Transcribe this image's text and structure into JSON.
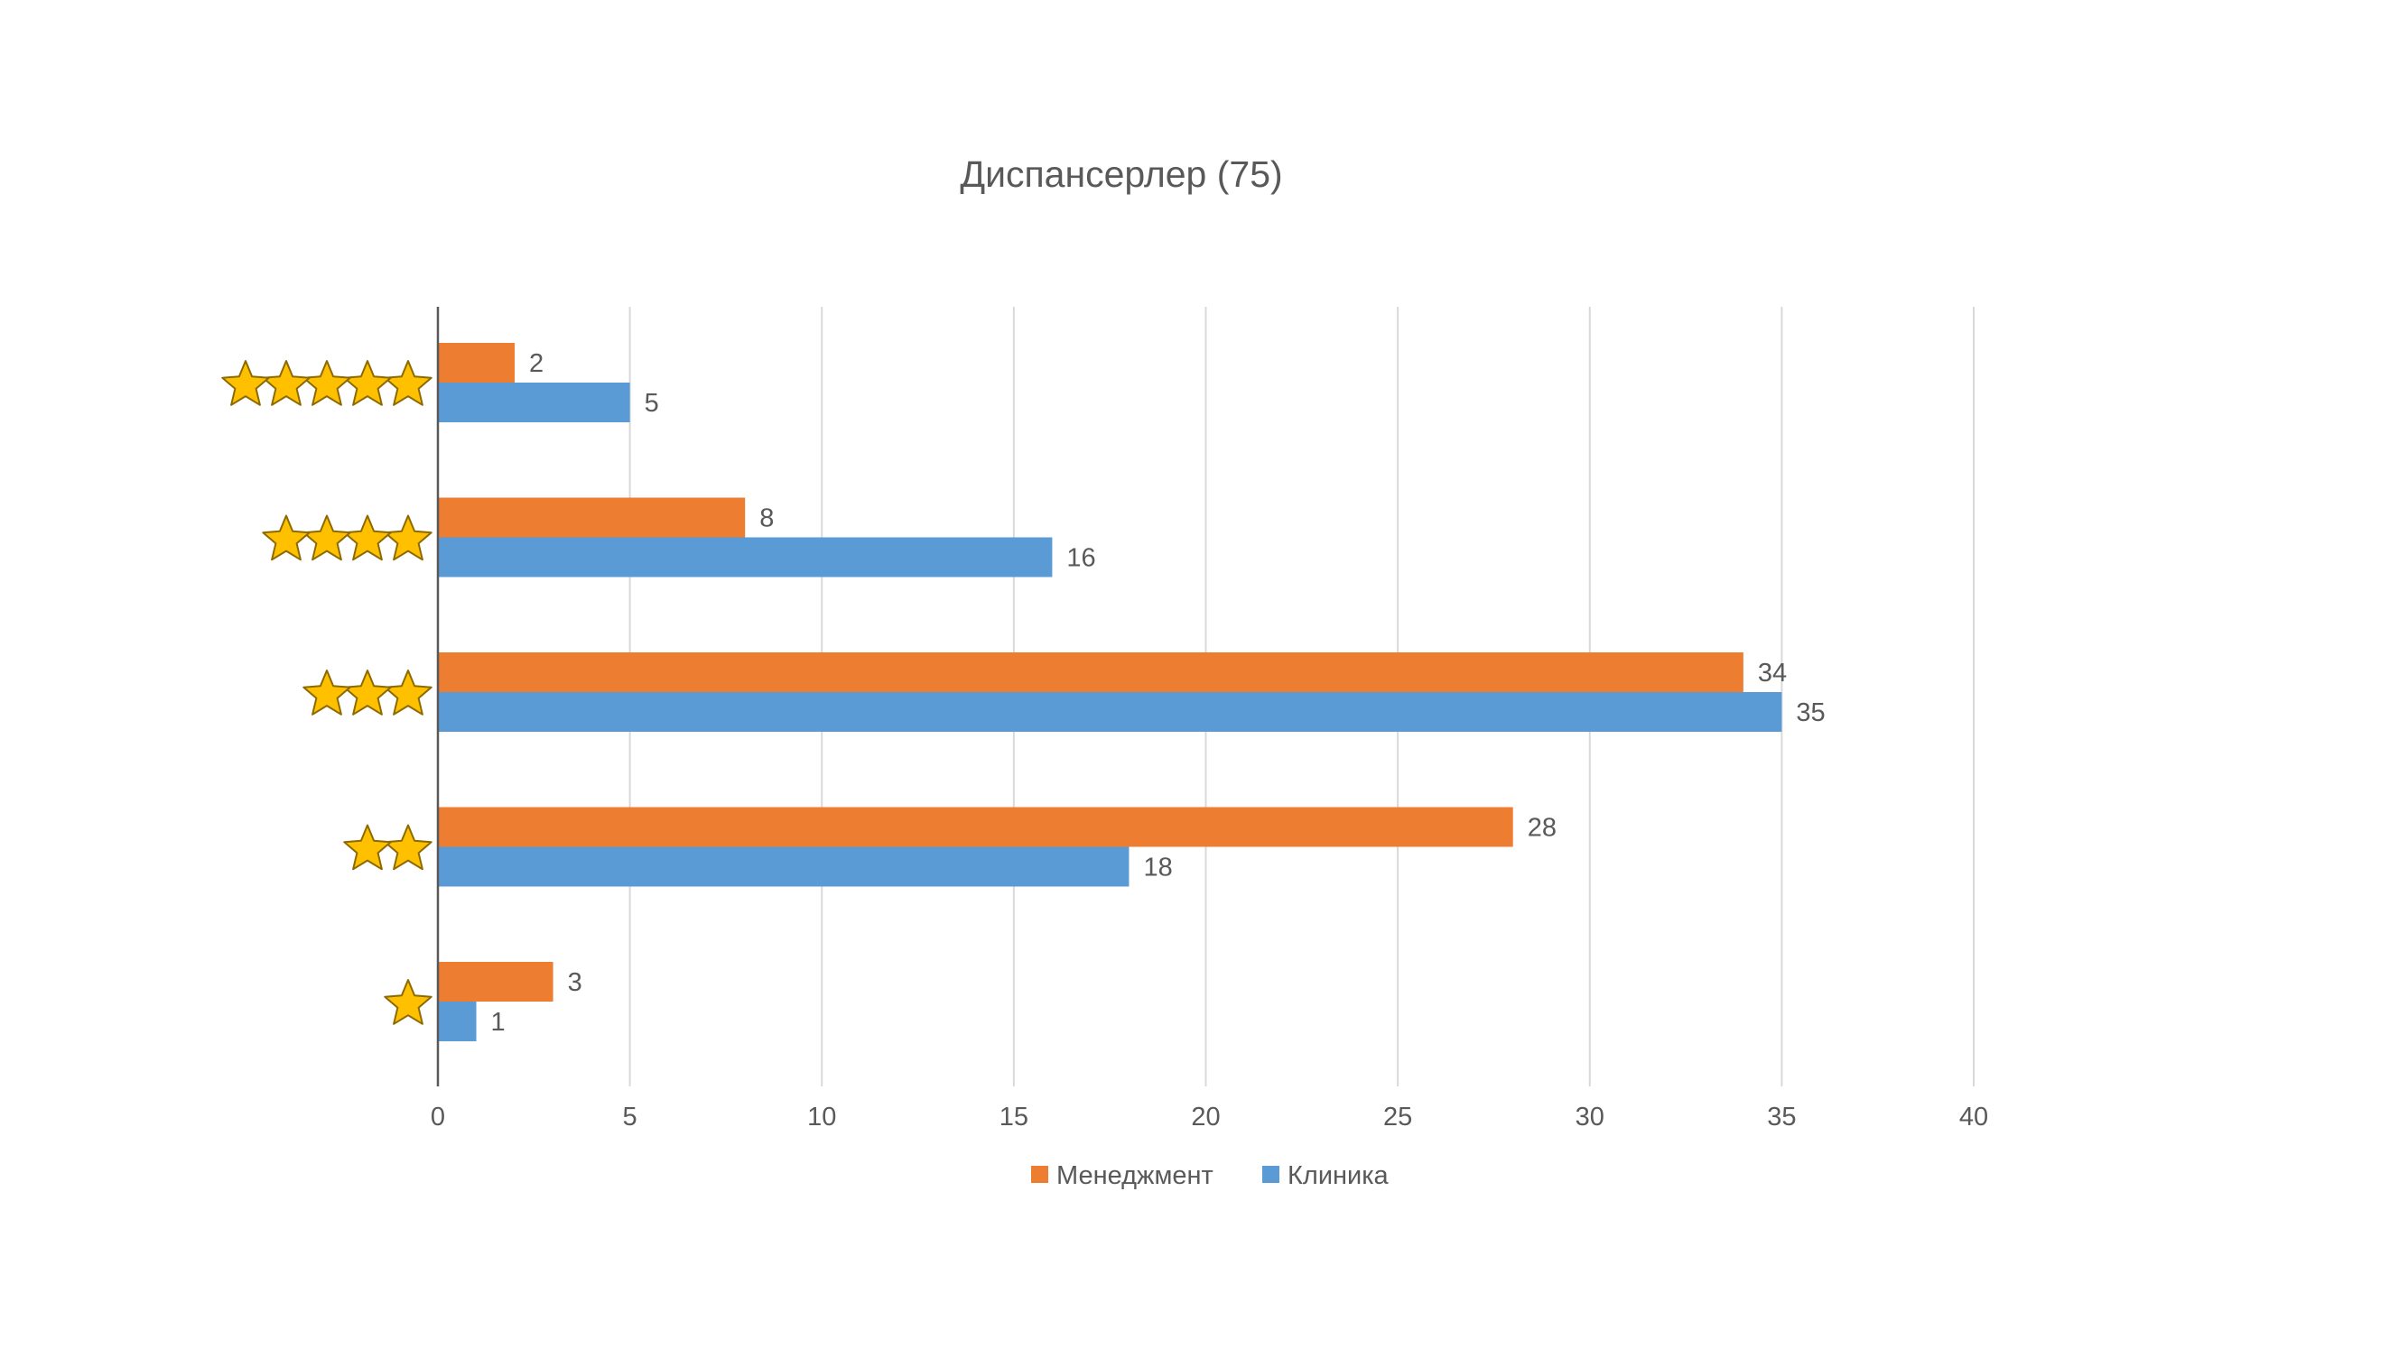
{
  "chart_data": {
    "type": "bar",
    "orientation": "horizontal",
    "title": "Диспансерлер (75)",
    "xlabel": "",
    "ylabel": "",
    "xlim": [
      0,
      40
    ],
    "x_ticks": [
      0,
      5,
      10,
      15,
      20,
      25,
      30,
      35,
      40
    ],
    "grid": true,
    "legend_position": "bottom",
    "categories": [
      "5 stars",
      "4 stars",
      "3 stars",
      "2 stars",
      "1 star"
    ],
    "category_star_counts": [
      5,
      4,
      3,
      2,
      1
    ],
    "series": [
      {
        "name": "Менеджмент",
        "color": "#ED7D31",
        "values": [
          2,
          8,
          34,
          28,
          3
        ]
      },
      {
        "name": "Клиника",
        "color": "#5B9BD5",
        "values": [
          5,
          16,
          35,
          18,
          1
        ]
      }
    ],
    "colors": {
      "text": "#595959",
      "title": "#595959",
      "grid": "#D9D9D9",
      "axis": "#595959",
      "star_fill": "#FFC000",
      "star_stroke": "#8C6A00"
    },
    "icons": {
      "category_marker": "star-icon",
      "legend_marker": "square-swatch"
    }
  }
}
